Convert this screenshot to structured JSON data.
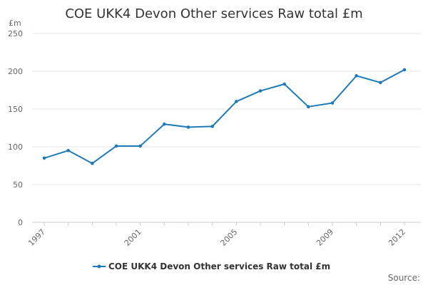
{
  "chart_data": {
    "type": "line",
    "title": "COE UKK4 Devon Other services Raw total £m",
    "ylabel": "£m",
    "xlabel": "",
    "ylim": [
      0,
      250
    ],
    "yticks": [
      0,
      50,
      100,
      150,
      200,
      250
    ],
    "x": [
      1997,
      1998,
      1999,
      2000,
      2001,
      2002,
      2003,
      2004,
      2005,
      2006,
      2007,
      2008,
      2009,
      2010,
      2011,
      2012
    ],
    "xtick_labels": [
      "1997",
      "2001",
      "2005",
      "2009",
      "2012"
    ],
    "series": [
      {
        "name": "COE UKK4 Devon Other services Raw total £m",
        "values": [
          85,
          95,
          78,
          101,
          101,
          130,
          126,
          127,
          160,
          174,
          183,
          153,
          158,
          194,
          185,
          202
        ]
      }
    ],
    "grid": "horizontal",
    "legend": "bottom-center",
    "colors": {
      "series": "#1f7ab8",
      "grid": "#e6e6e6",
      "axis": "#cccccc"
    }
  },
  "footer": {
    "source_label": "Source:"
  }
}
